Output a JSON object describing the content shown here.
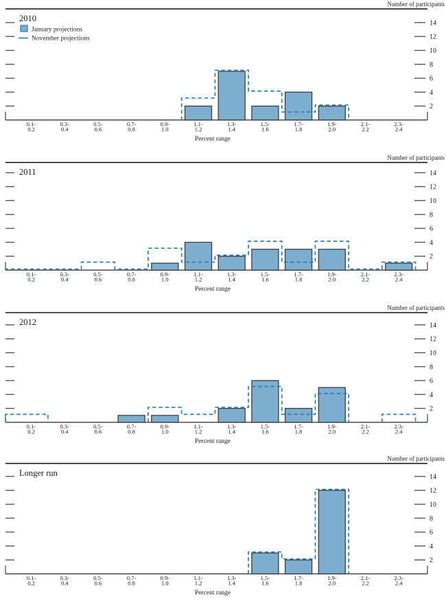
{
  "figure": {
    "y_axis_label": "Number of participants",
    "x_axis_label": "Percent range",
    "y_ticks": [
      2,
      4,
      6,
      8,
      10,
      12,
      14
    ],
    "legend": {
      "january_label": "January projections",
      "november_label": "November projections"
    },
    "colors": {
      "bar_fill": "#7eaecf",
      "bar_stroke": "#3d3d3d",
      "dash_line": "#2b7fb5",
      "axis": "#4a4a4a",
      "text": "#1b1b1b"
    }
  },
  "chart_data": [
    {
      "type": "bar",
      "title": "2010",
      "categories": [
        "0.1-0.2",
        "0.3-0.4",
        "0.5-0.6",
        "0.7-0.8",
        "0.9-1.0",
        "1.1-1.2",
        "1.3-1.4",
        "1.5-1.6",
        "1.7-1.8",
        "1.9-2.0",
        "2.1-2.2",
        "2.3-2.4"
      ],
      "xlabel": "Percent range",
      "ylabel": "Number of participants",
      "ylim": [
        0,
        16
      ],
      "series": [
        {
          "name": "January projections",
          "style": "solid-bar",
          "values": [
            0,
            0,
            0,
            0,
            0,
            2,
            7,
            2,
            4,
            2,
            0,
            0
          ]
        },
        {
          "name": "November projections",
          "style": "dashed-outline",
          "values": [
            null,
            null,
            null,
            null,
            null,
            3,
            7,
            4,
            1,
            2,
            null,
            null
          ]
        }
      ]
    },
    {
      "type": "bar",
      "title": "2011",
      "categories": [
        "0.1-0.2",
        "0.3-0.4",
        "0.5-0.6",
        "0.7-0.8",
        "0.9-1.0",
        "1.1-1.2",
        "1.3-1.4",
        "1.5-1.6",
        "1.7-1.8",
        "1.9-2.0",
        "2.1-2.2",
        "2.3-2.4"
      ],
      "xlabel": "Percent range",
      "ylabel": "Number of participants",
      "ylim": [
        0,
        16
      ],
      "series": [
        {
          "name": "January projections",
          "style": "solid-bar",
          "values": [
            0,
            0,
            0,
            0,
            1,
            4,
            2,
            3,
            3,
            3,
            0,
            1
          ]
        },
        {
          "name": "November projections",
          "style": "dashed-outline",
          "values": [
            0,
            0,
            1,
            0,
            3,
            1,
            2,
            4,
            1,
            4,
            0,
            1
          ]
        }
      ]
    },
    {
      "type": "bar",
      "title": "2012",
      "categories": [
        "0.1-0.2",
        "0.3-0.4",
        "0.5-0.6",
        "0.7-0.8",
        "0.9-1.0",
        "1.1-1.2",
        "1.3-1.4",
        "1.5-1.6",
        "1.7-1.8",
        "1.9-2.0",
        "2.1-2.2",
        "2.3-2.4"
      ],
      "xlabel": "Percent range",
      "ylabel": "Number of participants",
      "ylim": [
        0,
        16
      ],
      "series": [
        {
          "name": "January projections",
          "style": "solid-bar",
          "values": [
            0,
            0,
            0,
            1,
            1,
            0,
            2,
            6,
            2,
            5,
            0,
            0
          ]
        },
        {
          "name": "November projections",
          "style": "dashed-outline",
          "values": [
            1,
            null,
            null,
            null,
            2,
            1,
            2,
            5,
            1,
            4,
            null,
            1
          ]
        }
      ]
    },
    {
      "type": "bar",
      "title": "Longer run",
      "categories": [
        "0.1-0.2",
        "0.3-0.4",
        "0.5-0.6",
        "0.7-0.8",
        "0.9-1.0",
        "1.1-1.2",
        "1.3-1.4",
        "1.5-1.6",
        "1.7-1.8",
        "1.9-2.0",
        "2.1-2.2",
        "2.3-2.4"
      ],
      "xlabel": "Percent range",
      "ylabel": "Number of participants",
      "ylim": [
        0,
        16
      ],
      "series": [
        {
          "name": "January projections",
          "style": "solid-bar",
          "values": [
            0,
            0,
            0,
            0,
            0,
            0,
            0,
            3,
            2,
            12,
            0,
            0
          ]
        },
        {
          "name": "November projections",
          "style": "dashed-outline",
          "values": [
            null,
            null,
            null,
            null,
            null,
            null,
            null,
            3,
            2,
            12,
            null,
            null
          ]
        }
      ]
    }
  ]
}
